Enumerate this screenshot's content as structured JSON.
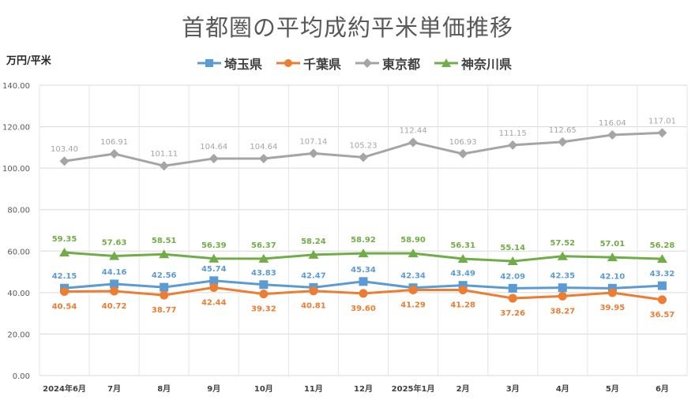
{
  "chart_data": {
    "type": "line",
    "title": "首都圏の平均成約平米単価推移",
    "ylabel": "万円/平米",
    "xlabel": "",
    "ylim": [
      0,
      140
    ],
    "yticks": [
      "0.00",
      "20.00",
      "40.00",
      "60.00",
      "80.00",
      "100.00",
      "120.00",
      "140.00"
    ],
    "grid": true,
    "legend_position": "top",
    "categories": [
      "2024年6月",
      "7月",
      "8月",
      "9月",
      "10月",
      "11月",
      "12月",
      "2025年1月",
      "2月",
      "3月",
      "4月",
      "5月",
      "6月"
    ],
    "series": [
      {
        "name": "埼玉県",
        "color": "#5B9BD5",
        "marker": "square",
        "values": [
          42.15,
          44.16,
          42.56,
          45.74,
          43.83,
          42.47,
          45.34,
          42.34,
          43.49,
          42.09,
          42.35,
          42.1,
          43.32
        ],
        "labels": [
          "42.15",
          "44.16",
          "42.56",
          "45.74",
          "43.83",
          "42.47",
          "45.34",
          "42.34",
          "43.49",
          "42.09",
          "42.35",
          "42.10",
          "43.32"
        ]
      },
      {
        "name": "千葉県",
        "color": "#ED7D31",
        "marker": "circle",
        "values": [
          40.54,
          40.72,
          38.77,
          42.44,
          39.32,
          40.81,
          39.6,
          41.29,
          41.28,
          37.26,
          38.27,
          39.95,
          36.57
        ],
        "labels": [
          "40.54",
          "40.72",
          "38.77",
          "42.44",
          "39.32",
          "40.81",
          "39.60",
          "41.29",
          "41.28",
          "37.26",
          "38.27",
          "39.95",
          "36.57"
        ]
      },
      {
        "name": "東京都",
        "color": "#A5A5A5",
        "marker": "diamond",
        "values": [
          103.4,
          106.91,
          101.11,
          104.64,
          104.64,
          107.14,
          105.23,
          112.44,
          106.93,
          111.15,
          112.65,
          116.04,
          117.01
        ],
        "labels": [
          "103.40",
          "106.91",
          "101.11",
          "104.64",
          "104.64",
          "107.14",
          "105.23",
          "112.44",
          "106.93",
          "111.15",
          "112.65",
          "116.04",
          "117.01"
        ]
      },
      {
        "name": "神奈川県",
        "color": "#70AD47",
        "marker": "triangle",
        "values": [
          59.35,
          57.63,
          58.51,
          56.39,
          56.37,
          58.24,
          58.92,
          58.9,
          56.31,
          55.14,
          57.52,
          57.01,
          56.28
        ],
        "labels": [
          "59.35",
          "57.63",
          "58.51",
          "56.39",
          "56.37",
          "58.24",
          "58.92",
          "58.90",
          "56.31",
          "55.14",
          "57.52",
          "57.01",
          "56.28"
        ]
      }
    ]
  }
}
